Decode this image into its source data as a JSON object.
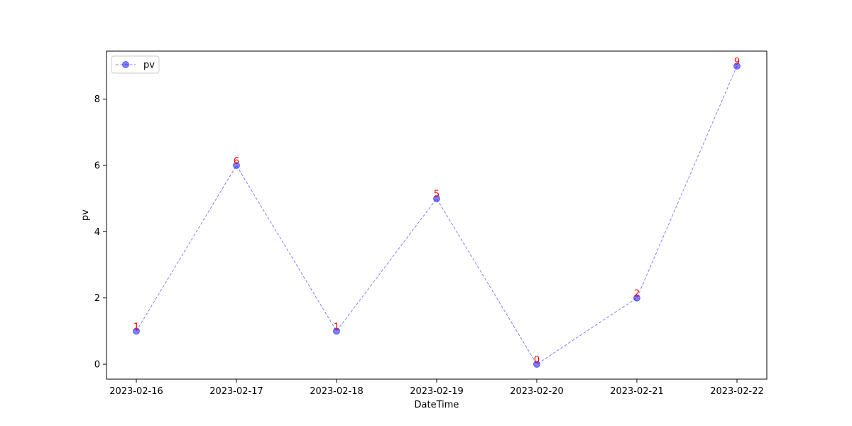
{
  "chart_data": {
    "type": "line",
    "title": "",
    "xlabel": "DateTime",
    "ylabel": "pv",
    "categories": [
      "2023-02-16",
      "2023-02-17",
      "2023-02-18",
      "2023-02-19",
      "2023-02-20",
      "2023-02-21",
      "2023-02-22"
    ],
    "series": [
      {
        "name": "pv",
        "values": [
          1,
          6,
          1,
          5,
          0,
          2,
          9
        ],
        "color": "#0000ff",
        "line_style": "dashed",
        "marker": "circle",
        "alpha": 0.5
      }
    ],
    "data_labels": [
      "1",
      "6",
      "1",
      "5",
      "0",
      "2",
      "9"
    ],
    "data_label_color": "#ff0000",
    "y_ticks": [
      0,
      2,
      4,
      6,
      8
    ],
    "y_tick_labels": [
      "0",
      "2",
      "4",
      "6",
      "8"
    ],
    "ylim": [
      -0.45,
      9.45
    ],
    "grid": false,
    "legend_position": "top-left"
  }
}
